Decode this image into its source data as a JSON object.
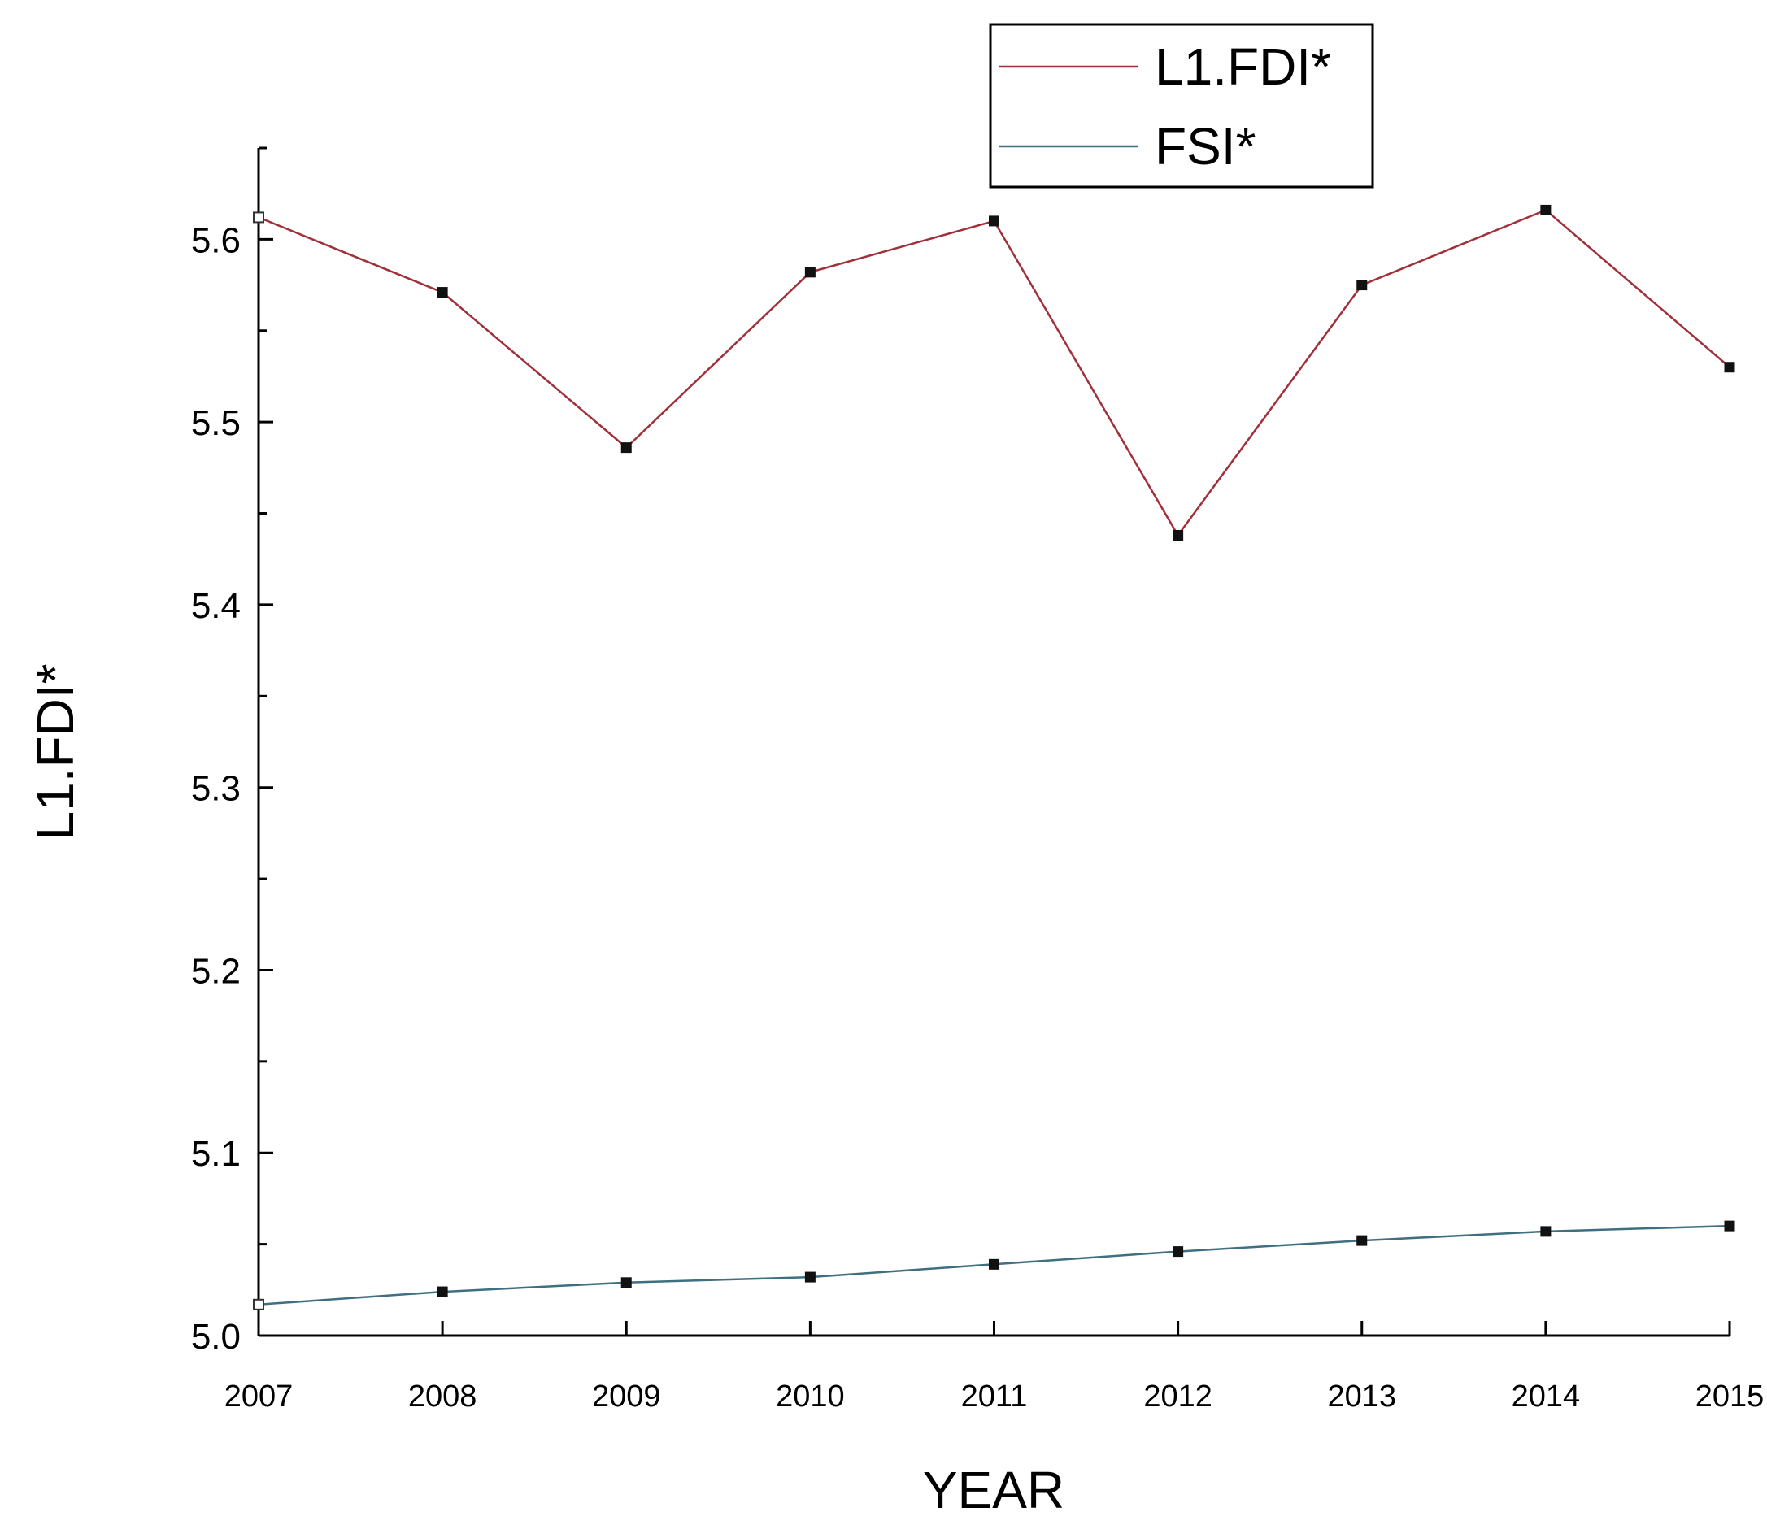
{
  "chart_data": {
    "type": "line",
    "title": "",
    "xlabel": "YEAR",
    "ylabel": "L1.FDI*",
    "x": [
      2007,
      2008,
      2009,
      2010,
      2011,
      2012,
      2013,
      2014,
      2015
    ],
    "x_tick_labels": [
      "2007",
      "2008",
      "2009",
      "2010",
      "2011",
      "2012",
      "2013",
      "2014",
      "2015"
    ],
    "xlim": [
      2007,
      2015
    ],
    "ylim": [
      5.0,
      5.65
    ],
    "y_ticks": [
      5.0,
      5.1,
      5.2,
      5.3,
      5.4,
      5.5,
      5.6
    ],
    "y_tick_labels": [
      "5.0",
      "5.1",
      "5.2",
      "5.3",
      "5.4",
      "5.5",
      "5.6"
    ],
    "grid": false,
    "legend_position": "top-center",
    "series": [
      {
        "name": "L1.FDI*",
        "color": "#a0303a",
        "values": [
          5.612,
          5.571,
          5.486,
          5.582,
          5.61,
          5.438,
          5.575,
          5.616,
          5.53
        ]
      },
      {
        "name": "FSI*",
        "color": "#3f6f80",
        "values": [
          5.017,
          5.024,
          5.029,
          5.032,
          5.039,
          5.046,
          5.052,
          5.057,
          5.06
        ]
      }
    ]
  }
}
